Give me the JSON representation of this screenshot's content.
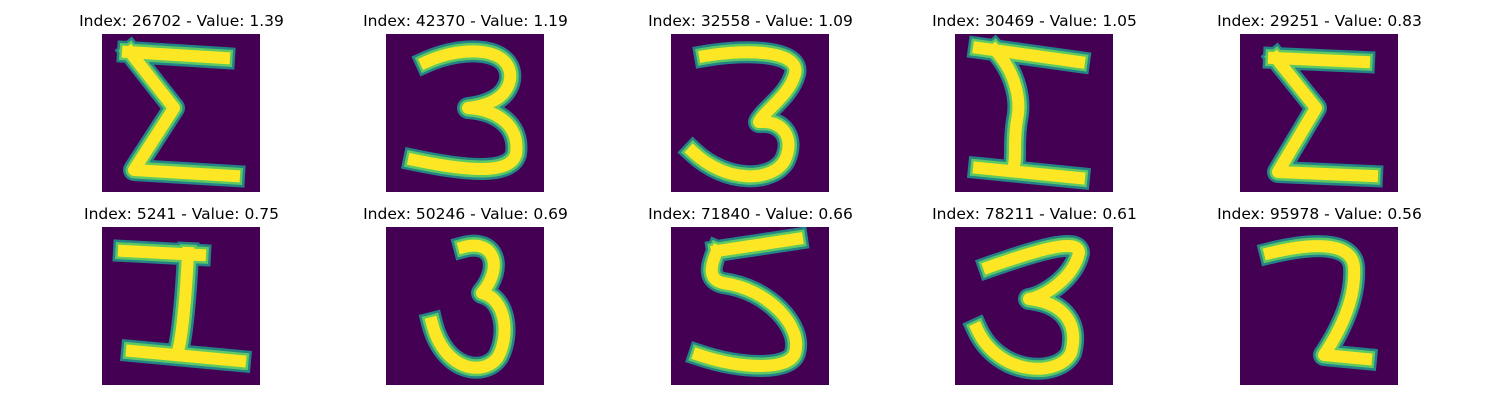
{
  "colors": {
    "background": "#440154",
    "stroke_outer": "#21918c",
    "stroke_mid": "#5ec962",
    "stroke_core": "#fde725"
  },
  "panels": [
    {
      "title": "Index: 26702 - Value: 1.39",
      "glyph": "sigma-a"
    },
    {
      "title": "Index: 42370 - Value: 1.19",
      "glyph": "three-a"
    },
    {
      "title": "Index: 32558 - Value: 1.09",
      "glyph": "three-b"
    },
    {
      "title": "Index: 30469 - Value: 1.05",
      "glyph": "sigma-b"
    },
    {
      "title": "Index: 29251 - Value: 0.83",
      "glyph": "sigma-c"
    },
    {
      "title": "Index: 5241 - Value: 0.75",
      "glyph": "one-a"
    },
    {
      "title": "Index: 50246 - Value: 0.69",
      "glyph": "three-c"
    },
    {
      "title": "Index: 71840 - Value: 0.66",
      "glyph": "five-a"
    },
    {
      "title": "Index: 78211 - Value: 0.61",
      "glyph": "three-d"
    },
    {
      "title": "Index: 95978 - Value: 0.56",
      "glyph": "two-a"
    }
  ]
}
